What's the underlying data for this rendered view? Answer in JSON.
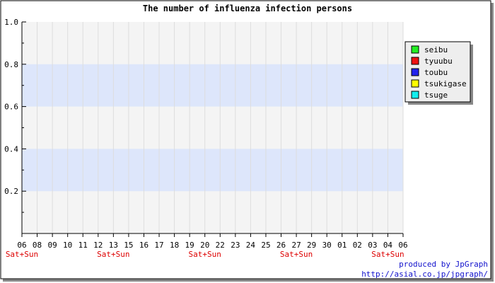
{
  "chart_data": {
    "type": "line",
    "title": "The number of influenza infection persons",
    "xlabel": "",
    "ylabel": "",
    "ylim": [
      0,
      1.0
    ],
    "yticks": [
      "0.2",
      "0.4",
      "0.6",
      "0.8",
      "1.0"
    ],
    "x_tick_labels": [
      "06",
      "08",
      "09",
      "10",
      "11",
      "12",
      "13",
      "15",
      "16",
      "17",
      "18",
      "19",
      "20",
      "22",
      "23",
      "24",
      "25",
      "26",
      "27",
      "29",
      "30",
      "01",
      "02",
      "03",
      "04",
      "06"
    ],
    "weekend_labels": [
      {
        "index": 0,
        "text": "Sat+Sun"
      },
      {
        "index": 6,
        "text": "Sat+Sun"
      },
      {
        "index": 12,
        "text": "Sat+Sun"
      },
      {
        "index": 18,
        "text": "Sat+Sun"
      },
      {
        "index": 24,
        "text": "Sat+Sun"
      }
    ],
    "grid": true,
    "legend_position": "right",
    "series": [
      {
        "name": "seibu",
        "color": "#22ee22",
        "values": []
      },
      {
        "name": "tyuubu",
        "color": "#ee1111",
        "values": []
      },
      {
        "name": "toubu",
        "color": "#2222ee",
        "values": []
      },
      {
        "name": "tsukigase",
        "color": "#ffff00",
        "values": []
      },
      {
        "name": "tsuge",
        "color": "#11eeee",
        "values": []
      }
    ],
    "band_color": "#dde6fb",
    "plot_bg": "#f4f4f4",
    "credit": {
      "line1": "produced by JpGraph",
      "line2": "http://asial.co.jp/jpgraph/",
      "color": "#1111cc"
    }
  }
}
